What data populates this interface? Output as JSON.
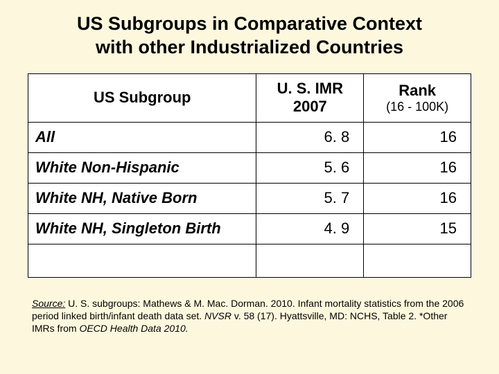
{
  "title_line1": "US Subgroups in Comparative Context",
  "title_line2": "with other Industrialized Countries",
  "table": {
    "headers": {
      "col1": "US Subgroup",
      "col2_line1": "U. S. IMR",
      "col2_line2": "2007",
      "col3_line1": "Rank",
      "col3_line2": "(16 - 100K)"
    },
    "rows": [
      {
        "label": "All",
        "imr": "6. 8",
        "rank": "16"
      },
      {
        "label": "White Non-Hispanic",
        "imr": "5. 6",
        "rank": "16"
      },
      {
        "label": "White NH, Native Born",
        "imr": "5. 7",
        "rank": "16"
      },
      {
        "label": "White NH, Singleton Birth",
        "imr": "4. 9",
        "rank": "15"
      }
    ]
  },
  "source": {
    "label": "Source:",
    "text1": " U. S. subgroups: Mathews & M. Mac. Dorman. 2010. Infant mortality statistics from the 2006 period linked birth/infant death data set. ",
    "italic1": "NVSR",
    "text2": " v. 58 (17). Hyattsville, MD: NCHS, Table 2. *Other IMRs from ",
    "italic2": "OECD Health Data 2010.",
    "text3": ""
  }
}
